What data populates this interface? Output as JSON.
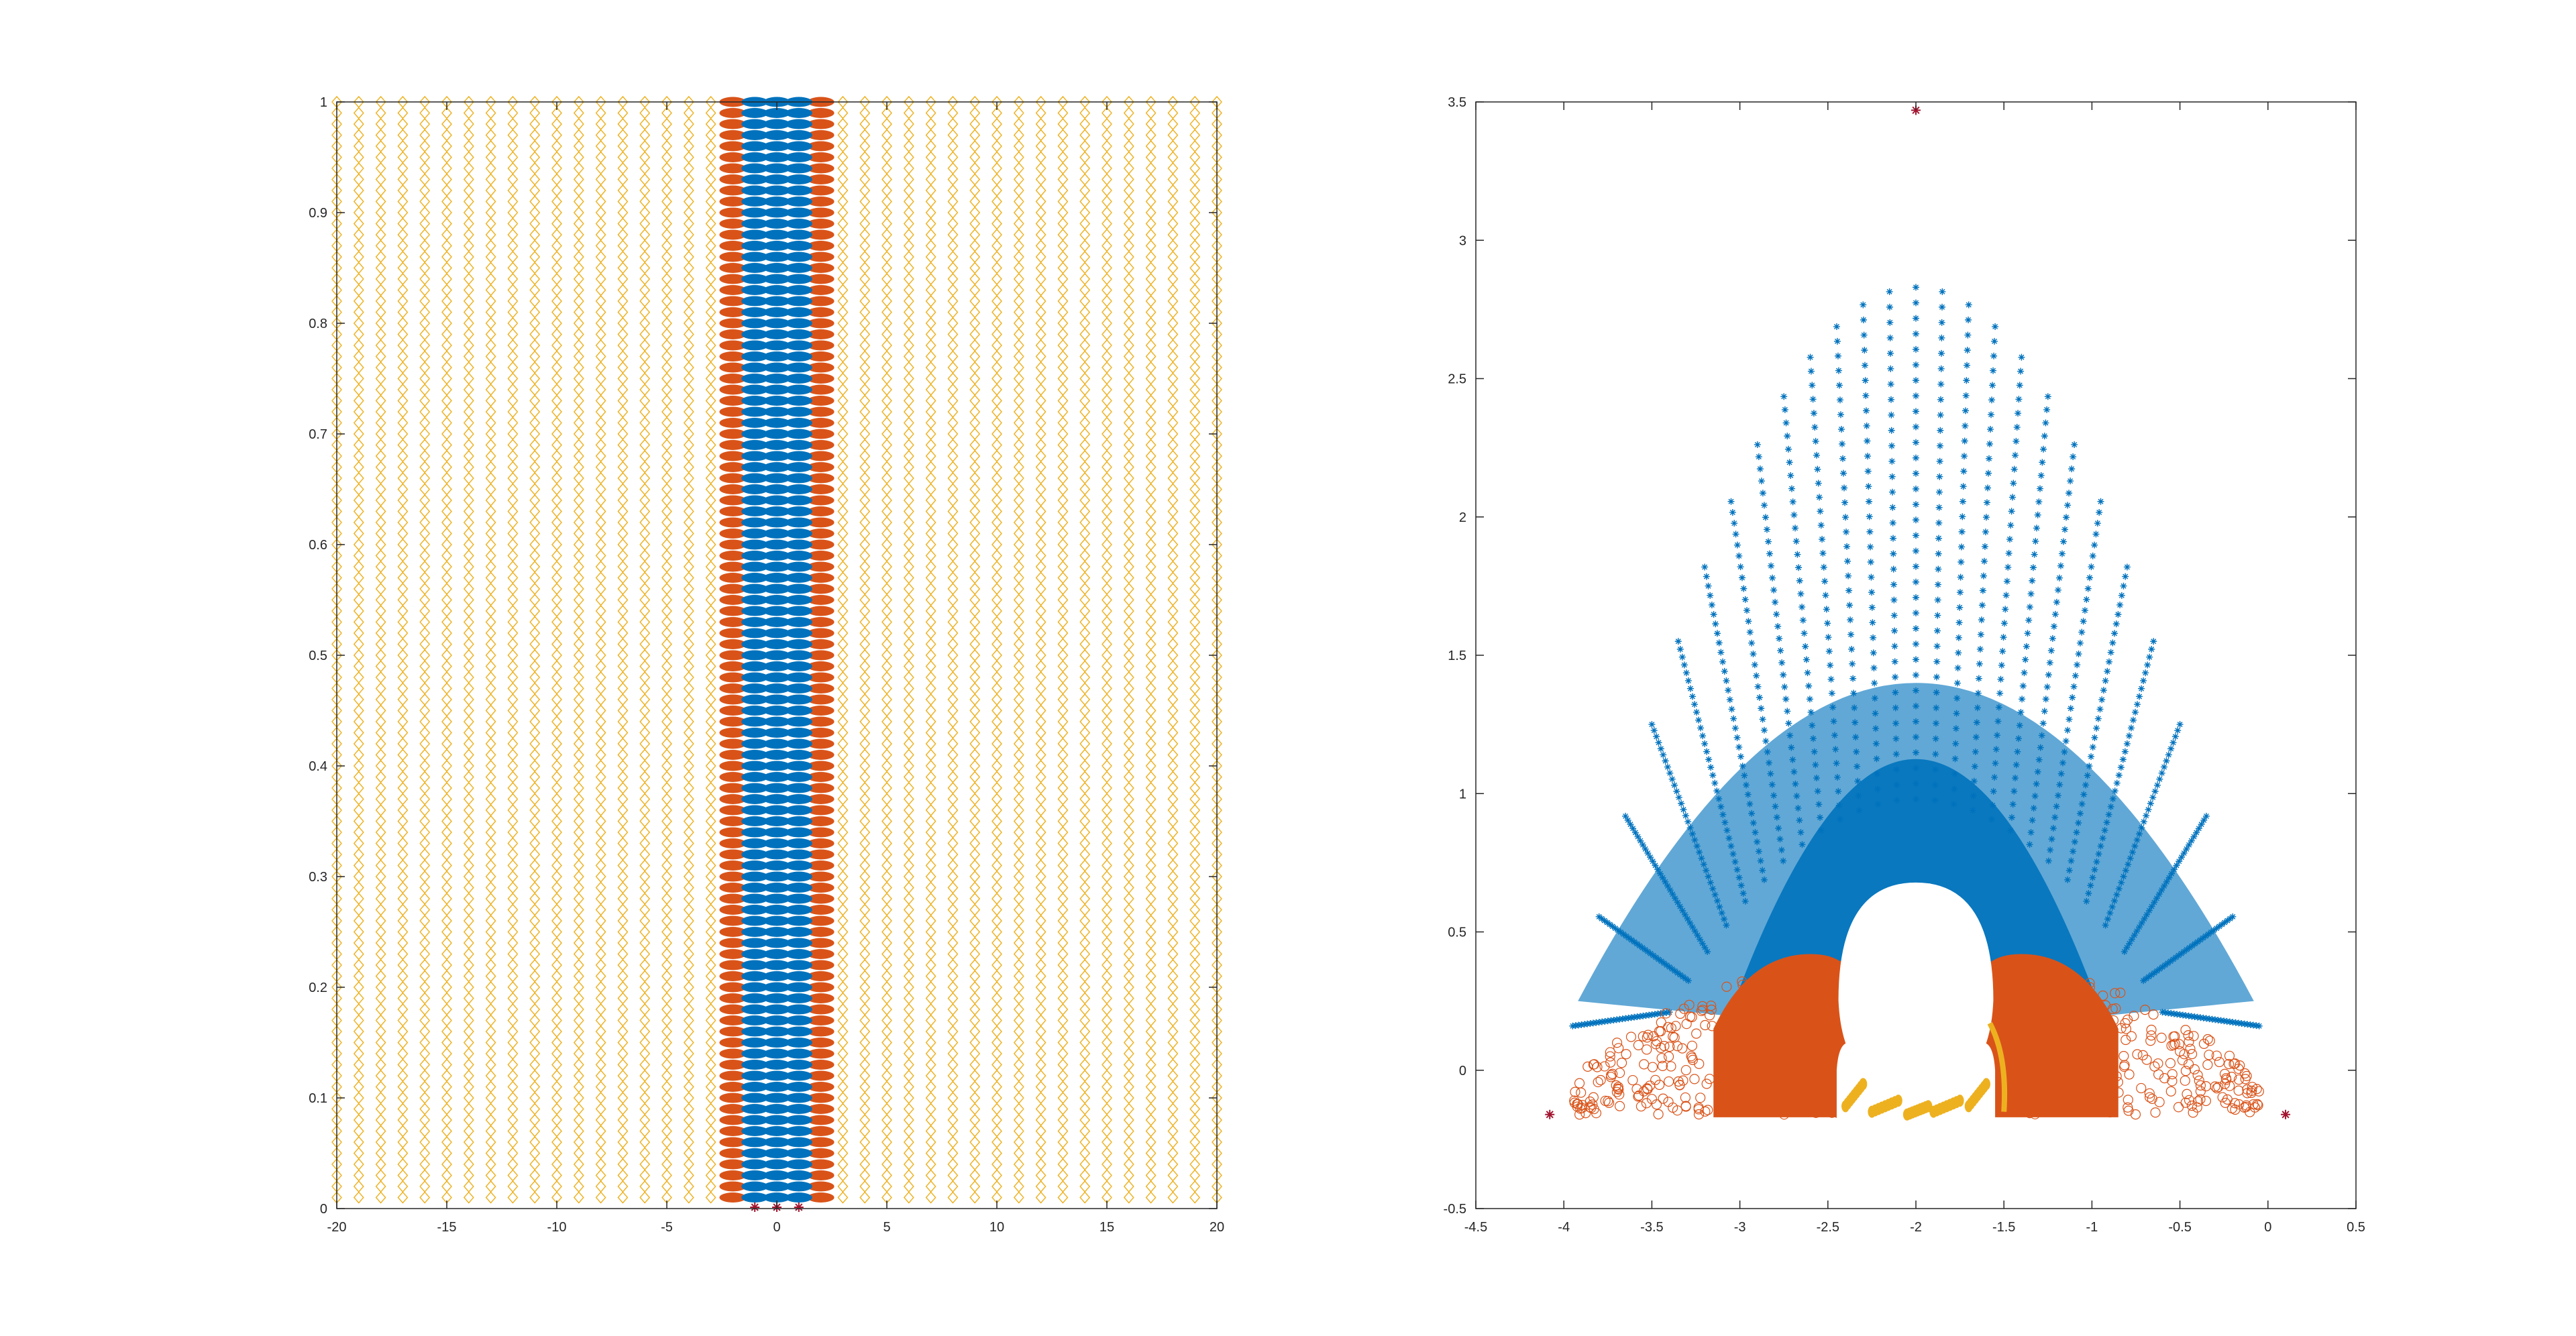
{
  "figure": {
    "background": "#ffffff",
    "axis_color": "#262626"
  },
  "chart_data": [
    {
      "type": "scatter",
      "title": "",
      "xlabel": "",
      "ylabel": "",
      "xlim": [
        -20,
        20
      ],
      "ylim": [
        0,
        1
      ],
      "xticks": [
        -20,
        -15,
        -10,
        -5,
        0,
        5,
        10,
        15,
        20
      ],
      "xtick_labels": [
        "-20",
        "-15",
        "-10",
        "-5",
        "0",
        "5",
        "10",
        "15",
        "20"
      ],
      "yticks": [
        0,
        0.1,
        0.2,
        0.3,
        0.4,
        0.5,
        0.6,
        0.7,
        0.8,
        0.9,
        1
      ],
      "ytick_labels": [
        "0",
        "0.1",
        "0.2",
        "0.3",
        "0.4",
        "0.5",
        "0.6",
        "0.7",
        "0.8",
        "0.9",
        "1"
      ],
      "grid": false,
      "series": [
        {
          "marker": "diamond-open",
          "color": "#EDB120",
          "x": [
            -20,
            -19,
            -18,
            -17,
            -16,
            -15,
            -14,
            -13,
            -12,
            -11,
            -10,
            -9,
            -8,
            -7,
            -6,
            -5,
            -4,
            -3,
            3,
            4,
            5,
            6,
            7,
            8,
            9,
            10,
            11,
            12,
            13,
            14,
            15,
            16,
            17,
            18,
            19,
            20
          ],
          "y_from": 0.01,
          "y_to": 1.0,
          "y_step": 0.01
        },
        {
          "marker": "circle-filled",
          "color": "#D95319",
          "x": [
            -2,
            2
          ],
          "y_from": 0.01,
          "y_to": 1.0,
          "y_step": 0.01
        },
        {
          "marker": "circle-filled",
          "color": "#0072BD",
          "x": [
            -1,
            0,
            1
          ],
          "y_from": 0.01,
          "y_to": 1.0,
          "y_step": 0.01
        },
        {
          "marker": "star",
          "color": "#A2142F",
          "x": [
            -1,
            0,
            1
          ],
          "y": [
            0,
            0,
            0
          ]
        }
      ]
    },
    {
      "type": "scatter",
      "title": "",
      "xlabel": "",
      "ylabel": "",
      "xlim": [
        -4.5,
        0.5
      ],
      "ylim": [
        -0.5,
        3.5
      ],
      "xticks": [
        -4.5,
        -4,
        -3.5,
        -3,
        -2.5,
        -2,
        -1.5,
        -1,
        -0.5,
        0,
        0.5
      ],
      "xtick_labels": [
        "-4.5",
        "-4",
        "-3.5",
        "-3",
        "-2.5",
        "-2",
        "-1.5",
        "-1",
        "-0.5",
        "0",
        "0.5"
      ],
      "yticks": [
        -0.5,
        0,
        0.5,
        1,
        1.5,
        2,
        2.5,
        3,
        3.5
      ],
      "ytick_labels": [
        "-0.5",
        "0",
        "0.5",
        "1",
        "1.5",
        "2",
        "2.5",
        "3",
        "3.5"
      ],
      "grid": false,
      "series": [
        {
          "marker": "star",
          "color": "#0072BD",
          "region": "wedge",
          "apex": [
            -2,
            2.83
          ],
          "left_base": [
            -4.0,
            0.16
          ],
          "right_base": [
            0.0,
            0.16
          ]
        },
        {
          "marker": "circle-open",
          "color": "#D95319",
          "region": "lower-band",
          "y_range": [
            -0.16,
            0.4
          ]
        },
        {
          "marker": "circle-filled",
          "color": "#D95319",
          "region": "side-lobes",
          "left_center": [
            -2.7,
            0.15
          ],
          "right_center": [
            -1.3,
            0.15
          ]
        },
        {
          "marker": "circle-filled",
          "color": "#EDB120",
          "region": "arcs",
          "x_range": [
            -2.45,
            -1.55
          ],
          "y_range": [
            -0.18,
            -0.06
          ]
        },
        {
          "marker": "star",
          "color": "#A2142F",
          "x": [
            -2.0,
            -4.08,
            0.1
          ],
          "y": [
            3.47,
            -0.16,
            -0.16
          ]
        }
      ],
      "blank_region": {
        "center": [
          -2,
          0.29
        ],
        "rx": 0.44,
        "ry": 0.37
      }
    }
  ]
}
